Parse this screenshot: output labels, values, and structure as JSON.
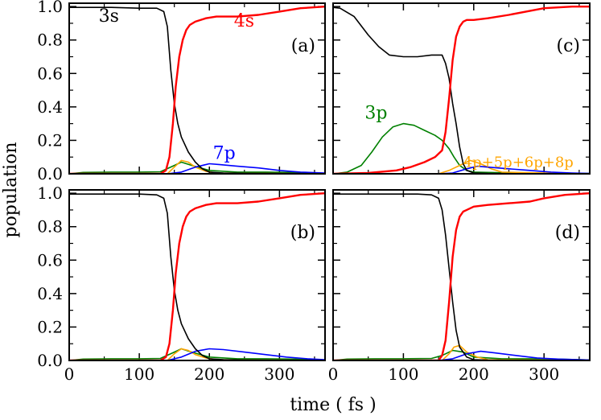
{
  "figure": {
    "ylabel": "population",
    "xlabel": "time ( fs )"
  },
  "colors": {
    "s3": "#000000",
    "s4": "#ff0000",
    "p3": "#008000",
    "p7": "#0000ff",
    "pmix": "#ffa500"
  },
  "chart_data": [
    {
      "type": "line",
      "panel": "(a)",
      "xlim": [
        0,
        365
      ],
      "ylim": [
        0,
        1.02
      ],
      "xticks": [
        "0",
        "100",
        "200",
        "300"
      ],
      "yticks": [
        "0.0",
        "0.2",
        "0.4",
        "0.6",
        "0.8",
        "1.0"
      ],
      "labels": {
        "s3": "3s",
        "s4": "4s",
        "p7": "7p"
      },
      "series": [
        {
          "name": "3s",
          "color": "#000000",
          "x": [
            0,
            60,
            100,
            125,
            135,
            140,
            145,
            150,
            155,
            160,
            170,
            180,
            190,
            200,
            220,
            250,
            300,
            365
          ],
          "y": [
            0.995,
            0.995,
            0.99,
            0.99,
            0.97,
            0.88,
            0.62,
            0.42,
            0.3,
            0.22,
            0.13,
            0.07,
            0.03,
            0.01,
            0.005,
            0.003,
            0.002,
            0.001
          ]
        },
        {
          "name": "4s",
          "color": "#ff0000",
          "x": [
            0,
            130,
            138,
            143,
            148,
            152,
            157,
            162,
            167,
            172,
            180,
            195,
            210,
            240,
            270,
            300,
            330,
            365
          ],
          "y": [
            0,
            0,
            0.02,
            0.1,
            0.3,
            0.52,
            0.7,
            0.8,
            0.86,
            0.89,
            0.91,
            0.93,
            0.94,
            0.94,
            0.95,
            0.97,
            0.99,
            1.0
          ]
        },
        {
          "name": "7p",
          "color": "#0000ff",
          "x": [
            0,
            140,
            160,
            180,
            200,
            215,
            240,
            270,
            300,
            330,
            365
          ],
          "y": [
            0,
            0,
            0.01,
            0.04,
            0.06,
            0.055,
            0.045,
            0.035,
            0.02,
            0.01,
            0.005
          ]
        },
        {
          "name": "3p",
          "color": "#008000",
          "x": [
            0,
            20,
            60,
            100,
            130,
            150,
            160,
            175,
            200,
            240,
            280,
            320,
            365
          ],
          "y": [
            0,
            0.008,
            0.01,
            0.01,
            0.012,
            0.05,
            0.07,
            0.05,
            0.02,
            0.01,
            0.01,
            0.008,
            0.003
          ]
        },
        {
          "name": "4p+5p+6p+8p",
          "color": "#ffa500",
          "x": [
            0,
            140,
            150,
            160,
            170,
            180,
            195,
            210,
            365
          ],
          "y": [
            0,
            0,
            0.04,
            0.08,
            0.07,
            0.04,
            0.015,
            0.005,
            0
          ]
        }
      ]
    },
    {
      "type": "line",
      "panel": "(b)",
      "xlim": [
        0,
        365
      ],
      "ylim": [
        0,
        1.02
      ],
      "xticks": [
        "0",
        "100",
        "200",
        "300"
      ],
      "yticks": [
        "0.0",
        "0.2",
        "0.4",
        "0.6",
        "0.8",
        "1.0"
      ],
      "labels": {},
      "series": [
        {
          "name": "3s",
          "color": "#000000",
          "x": [
            0,
            100,
            125,
            135,
            140,
            145,
            150,
            155,
            160,
            170,
            180,
            190,
            200,
            220,
            250,
            365
          ],
          "y": [
            0.995,
            0.995,
            0.99,
            0.97,
            0.88,
            0.62,
            0.42,
            0.3,
            0.22,
            0.13,
            0.07,
            0.03,
            0.01,
            0.005,
            0.003,
            0.001
          ]
        },
        {
          "name": "4s",
          "color": "#ff0000",
          "x": [
            0,
            130,
            138,
            143,
            148,
            152,
            157,
            162,
            167,
            172,
            180,
            195,
            210,
            240,
            270,
            300,
            330,
            365
          ],
          "y": [
            0,
            0,
            0.02,
            0.1,
            0.3,
            0.52,
            0.7,
            0.8,
            0.86,
            0.89,
            0.91,
            0.93,
            0.94,
            0.94,
            0.95,
            0.97,
            0.99,
            1.0
          ]
        },
        {
          "name": "7p",
          "color": "#0000ff",
          "x": [
            0,
            140,
            160,
            180,
            200,
            220,
            250,
            280,
            310,
            340,
            365
          ],
          "y": [
            0,
            0,
            0.02,
            0.055,
            0.07,
            0.065,
            0.05,
            0.035,
            0.02,
            0.01,
            0.005
          ]
        },
        {
          "name": "3p",
          "color": "#008000",
          "x": [
            0,
            20,
            60,
            100,
            130,
            150,
            160,
            175,
            200,
            240,
            280,
            320,
            365
          ],
          "y": [
            0,
            0.008,
            0.01,
            0.01,
            0.012,
            0.05,
            0.07,
            0.05,
            0.02,
            0.01,
            0.01,
            0.008,
            0.003
          ]
        },
        {
          "name": "4p+5p+6p+8p",
          "color": "#ffa500",
          "x": [
            0,
            140,
            150,
            160,
            170,
            180,
            195,
            210,
            365
          ],
          "y": [
            0,
            0,
            0.04,
            0.07,
            0.06,
            0.035,
            0.015,
            0.005,
            0
          ]
        }
      ]
    },
    {
      "type": "line",
      "panel": "(c)",
      "xlim": [
        0,
        365
      ],
      "ylim": [
        0,
        1.02
      ],
      "xticks": [
        "0",
        "100",
        "200",
        "300"
      ],
      "yticks": [
        "0.0",
        "0.2",
        "0.4",
        "0.6",
        "0.8",
        "1.0"
      ],
      "labels": {
        "p3": "3p",
        "pmix": "4p+5p+6p+8p"
      },
      "series": [
        {
          "name": "3s",
          "color": "#000000",
          "x": [
            0,
            10,
            30,
            50,
            65,
            80,
            100,
            120,
            140,
            155,
            160,
            165,
            170,
            175,
            180,
            185,
            190,
            200,
            220,
            260,
            365
          ],
          "y": [
            0.995,
            0.99,
            0.94,
            0.83,
            0.76,
            0.71,
            0.7,
            0.7,
            0.71,
            0.71,
            0.66,
            0.57,
            0.42,
            0.3,
            0.16,
            0.06,
            0.02,
            0.005,
            0.002,
            0.001,
            0.001
          ]
        },
        {
          "name": "4s",
          "color": "#ff0000",
          "x": [
            0,
            50,
            90,
            110,
            130,
            145,
            155,
            160,
            165,
            170,
            175,
            180,
            185,
            190,
            200,
            220,
            250,
            300,
            340,
            365
          ],
          "y": [
            0,
            0.005,
            0.02,
            0.04,
            0.07,
            0.1,
            0.14,
            0.25,
            0.45,
            0.68,
            0.82,
            0.88,
            0.91,
            0.92,
            0.92,
            0.93,
            0.95,
            0.99,
            1.0,
            1.0
          ]
        },
        {
          "name": "3p",
          "color": "#008000",
          "x": [
            0,
            20,
            40,
            55,
            70,
            85,
            100,
            115,
            130,
            145,
            155,
            165,
            172,
            180,
            190,
            200,
            220,
            260,
            300,
            365
          ],
          "y": [
            0,
            0.01,
            0.05,
            0.13,
            0.22,
            0.28,
            0.3,
            0.29,
            0.26,
            0.23,
            0.2,
            0.15,
            0.1,
            0.05,
            0.02,
            0.01,
            0.008,
            0.005,
            0.003,
            0.002
          ]
        },
        {
          "name": "7p",
          "color": "#0000ff",
          "x": [
            0,
            150,
            170,
            190,
            205,
            220,
            250,
            280,
            310,
            340,
            365
          ],
          "y": [
            0,
            0,
            0.005,
            0.03,
            0.045,
            0.04,
            0.03,
            0.02,
            0.01,
            0.005,
            0.002
          ]
        },
        {
          "name": "4p+5p+6p+8p",
          "color": "#ffa500",
          "x": [
            0,
            150,
            165,
            180,
            195,
            210,
            225,
            240,
            365
          ],
          "y": [
            0,
            0,
            0.02,
            0.05,
            0.08,
            0.06,
            0.03,
            0.01,
            0
          ]
        }
      ]
    },
    {
      "type": "line",
      "panel": "(d)",
      "xlim": [
        0,
        365
      ],
      "ylim": [
        0,
        1.02
      ],
      "xticks": [
        "0",
        "100",
        "200",
        "300"
      ],
      "yticks": [
        "0.0",
        "0.2",
        "0.4",
        "0.6",
        "0.8",
        "1.0"
      ],
      "labels": {},
      "series": [
        {
          "name": "3s",
          "color": "#000000",
          "x": [
            0,
            120,
            140,
            150,
            155,
            160,
            165,
            170,
            175,
            180,
            190,
            200,
            220,
            365
          ],
          "y": [
            0.995,
            0.995,
            0.99,
            0.97,
            0.9,
            0.75,
            0.55,
            0.35,
            0.18,
            0.08,
            0.02,
            0.005,
            0.002,
            0.001
          ]
        },
        {
          "name": "4s",
          "color": "#ff0000",
          "x": [
            0,
            150,
            155,
            160,
            165,
            170,
            175,
            180,
            185,
            190,
            200,
            220,
            250,
            280,
            300,
            330,
            365
          ],
          "y": [
            0,
            0,
            0.03,
            0.12,
            0.35,
            0.62,
            0.78,
            0.86,
            0.89,
            0.9,
            0.92,
            0.93,
            0.94,
            0.95,
            0.97,
            0.99,
            1.0
          ]
        },
        {
          "name": "7p",
          "color": "#0000ff",
          "x": [
            0,
            150,
            170,
            190,
            210,
            230,
            260,
            290,
            320,
            365
          ],
          "y": [
            0,
            0,
            0.01,
            0.04,
            0.055,
            0.045,
            0.03,
            0.015,
            0.008,
            0.003
          ]
        },
        {
          "name": "3p",
          "color": "#008000",
          "x": [
            0,
            20,
            60,
            100,
            140,
            155,
            170,
            185,
            200,
            240,
            280,
            320,
            365
          ],
          "y": [
            0,
            0.008,
            0.01,
            0.01,
            0.012,
            0.03,
            0.06,
            0.05,
            0.02,
            0.01,
            0.01,
            0.008,
            0.003
          ]
        },
        {
          "name": "4p+5p+6p+8p",
          "color": "#ffa500",
          "x": [
            0,
            155,
            165,
            172,
            180,
            190,
            205,
            220,
            365
          ],
          "y": [
            0,
            0,
            0.04,
            0.08,
            0.09,
            0.05,
            0.02,
            0.005,
            0
          ]
        }
      ]
    }
  ]
}
